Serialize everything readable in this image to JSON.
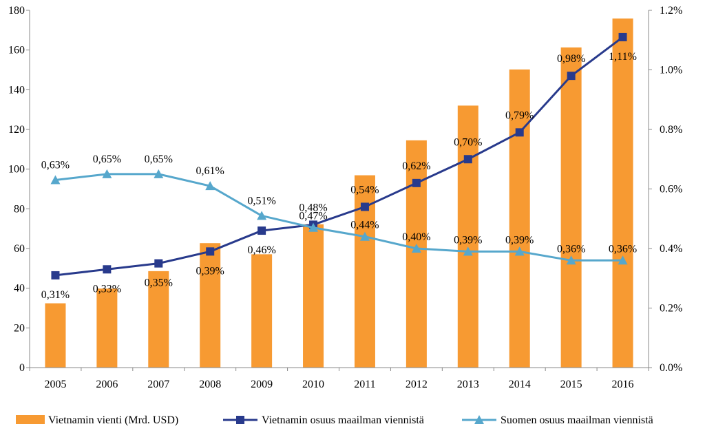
{
  "chart_data": {
    "type": "bar+line",
    "categories": [
      "2005",
      "2006",
      "2007",
      "2008",
      "2009",
      "2010",
      "2011",
      "2012",
      "2013",
      "2014",
      "2015",
      "2016"
    ],
    "bar_series": {
      "name": "Vietnamin vienti (Mrd. USD)",
      "values": [
        32.4,
        39.8,
        48.6,
        62.7,
        57.1,
        72.2,
        96.9,
        114.5,
        132.0,
        150.2,
        161.3,
        175.9
      ],
      "color": "#F79A32"
    },
    "line_series": [
      {
        "name": "Vietnamin osuus maailman viennistä",
        "values": [
          0.31,
          0.33,
          0.35,
          0.39,
          0.46,
          0.48,
          0.54,
          0.62,
          0.7,
          0.79,
          0.98,
          1.11
        ],
        "labels": [
          "0,31%",
          "0,33%",
          "0,35%",
          "0,39%",
          "0,46%",
          "0,48%",
          "0,54%",
          "0,62%",
          "0,70%",
          "0,79%",
          "0,98%",
          "1,11%"
        ],
        "color": "#283A8C",
        "marker": "square"
      },
      {
        "name": "Suomen osuus maailman viennistä",
        "values": [
          0.63,
          0.65,
          0.65,
          0.61,
          0.51,
          0.47,
          0.44,
          0.4,
          0.39,
          0.39,
          0.36,
          0.36
        ],
        "labels": [
          "0,63%",
          "0,65%",
          "0,65%",
          "0,61%",
          "0,51%",
          "0,47%",
          "0,44%",
          "0,40%",
          "0,39%",
          "0,39%",
          "0,36%",
          "0,36%"
        ],
        "color": "#56A7CC",
        "marker": "triangle"
      }
    ],
    "y_left": {
      "min": 0,
      "max": 180,
      "step": 20,
      "ticks": [
        "0",
        "20",
        "40",
        "60",
        "80",
        "100",
        "120",
        "140",
        "160",
        "180"
      ]
    },
    "y_right": {
      "min": 0,
      "max": 1.2,
      "step": 0.2,
      "ticks": [
        "0.0%",
        "0.2%",
        "0.4%",
        "0.6%",
        "0.8%",
        "1.0%",
        "1.2%"
      ]
    },
    "legend_position": "bottom",
    "grid": false
  }
}
